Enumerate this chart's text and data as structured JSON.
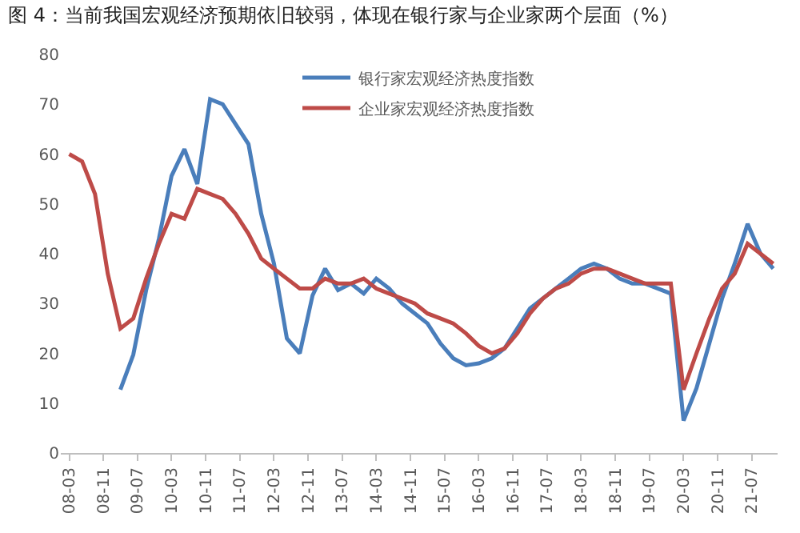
{
  "chart_data": {
    "type": "line",
    "title": "图 4：当前我国宏观经济预期依旧较弱，体现在银行家与企业家两个层面（%）",
    "x": [
      "2008-03",
      "2008-06",
      "2008-09",
      "2008-12",
      "2009-03",
      "2009-06",
      "2009-09",
      "2009-12",
      "2010-03",
      "2010-06",
      "2010-09",
      "2010-12",
      "2011-03",
      "2011-06",
      "2011-09",
      "2011-12",
      "2012-03",
      "2012-06",
      "2012-09",
      "2012-12",
      "2013-03",
      "2013-06",
      "2013-09",
      "2013-12",
      "2014-03",
      "2014-06",
      "2014-09",
      "2014-12",
      "2015-03",
      "2015-06",
      "2015-09",
      "2015-12",
      "2016-03",
      "2016-06",
      "2016-09",
      "2016-12",
      "2017-03",
      "2017-06",
      "2017-09",
      "2017-12",
      "2018-03",
      "2018-06",
      "2018-09",
      "2018-12",
      "2019-03",
      "2019-06",
      "2019-09",
      "2019-12",
      "2020-03",
      "2020-06",
      "2020-09",
      "2020-12",
      "2021-03",
      "2021-06",
      "2021-09",
      "2021-12"
    ],
    "series": [
      {
        "name": "银行家宏观经济热度指数",
        "color": "#4a7ebb",
        "values": [
          null,
          null,
          null,
          null,
          12.7,
          19.7,
          32.7,
          43,
          55.6,
          61,
          54,
          71,
          70,
          66,
          62,
          48,
          38,
          23,
          20,
          31.6,
          37,
          32.7,
          34,
          32,
          35,
          33,
          30,
          28,
          26,
          22,
          19,
          17.6,
          18,
          19,
          21,
          25,
          29,
          31,
          33,
          35,
          37,
          38,
          37,
          35,
          34,
          34,
          33,
          32,
          6.5,
          13,
          22,
          31,
          38,
          46,
          40,
          37
        ]
      },
      {
        "name": "企业家宏观经济热度指数",
        "color": "#be4b48",
        "values": [
          60,
          58.5,
          52,
          36,
          25,
          27,
          35,
          42,
          48,
          47,
          53,
          52,
          51,
          48,
          44,
          39,
          37,
          35,
          33,
          33,
          35,
          34,
          34,
          35,
          33,
          32,
          31,
          30,
          28,
          27,
          26,
          24,
          21.5,
          20,
          21,
          24,
          28,
          31,
          33,
          34,
          36,
          37,
          37,
          36,
          35,
          34,
          34,
          34,
          12.7,
          20,
          27,
          33,
          36,
          42,
          40,
          38
        ]
      }
    ],
    "xlim": [
      "2008-01",
      "2022-01"
    ],
    "xticks": [
      {
        "value": "2008-03",
        "label": "08-03"
      },
      {
        "value": "2008-11",
        "label": "08-11"
      },
      {
        "value": "2009-07",
        "label": "09-07"
      },
      {
        "value": "2010-03",
        "label": "10-03"
      },
      {
        "value": "2010-11",
        "label": "10-11"
      },
      {
        "value": "2011-07",
        "label": "11-07"
      },
      {
        "value": "2012-03",
        "label": "12-03"
      },
      {
        "value": "2012-11",
        "label": "12-11"
      },
      {
        "value": "2013-07",
        "label": "13-07"
      },
      {
        "value": "2014-03",
        "label": "14-03"
      },
      {
        "value": "2014-11",
        "label": "14-11"
      },
      {
        "value": "2015-07",
        "label": "15-07"
      },
      {
        "value": "2016-03",
        "label": "16-03"
      },
      {
        "value": "2016-11",
        "label": "16-11"
      },
      {
        "value": "2017-07",
        "label": "17-07"
      },
      {
        "value": "2018-03",
        "label": "18-03"
      },
      {
        "value": "2018-11",
        "label": "18-11"
      },
      {
        "value": "2019-07",
        "label": "19-07"
      },
      {
        "value": "2020-03",
        "label": "20-03"
      },
      {
        "value": "2020-11",
        "label": "20-11"
      },
      {
        "value": "2021-07",
        "label": "21-07"
      }
    ],
    "ylim": [
      0,
      80
    ],
    "yticks": [
      0,
      10,
      20,
      30,
      40,
      50,
      60,
      70,
      80
    ],
    "grid": false,
    "legend": "top",
    "marker": "none",
    "line_style": "solid"
  }
}
